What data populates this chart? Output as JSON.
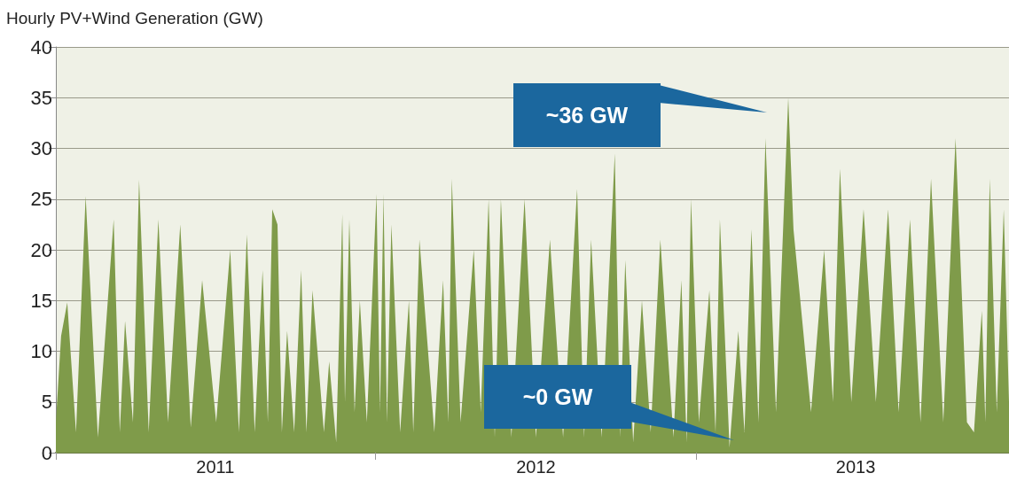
{
  "chart_data": {
    "type": "area",
    "ylabel": "Hourly PV+Wind Generation (GW)",
    "x": [
      "2011-01-01",
      "2011-01-07",
      "2011-01-14",
      "2011-01-24",
      "2011-02-04",
      "2011-02-18",
      "2011-03-08",
      "2011-03-15",
      "2011-03-21",
      "2011-03-30",
      "2011-04-06",
      "2011-04-17",
      "2011-04-28",
      "2011-05-09",
      "2011-05-23",
      "2011-06-04",
      "2011-06-17",
      "2011-07-03",
      "2011-07-19",
      "2011-07-29",
      "2011-08-07",
      "2011-08-16",
      "2011-08-25",
      "2011-08-31",
      "2011-09-05",
      "2011-09-11",
      "2011-09-16",
      "2011-09-22",
      "2011-09-30",
      "2011-10-08",
      "2011-10-14",
      "2011-10-21",
      "2011-11-03",
      "2011-11-09",
      "2011-11-17",
      "2011-11-24",
      "2011-11-27",
      "2011-12-02",
      "2011-12-08",
      "2011-12-14",
      "2011-12-22",
      "2012-01-02",
      "2012-01-06",
      "2012-01-10",
      "2012-01-14",
      "2012-01-19",
      "2012-01-29",
      "2012-02-08",
      "2012-02-13",
      "2012-02-20",
      "2012-03-08",
      "2012-03-18",
      "2012-03-24",
      "2012-03-28",
      "2012-04-07",
      "2012-04-22",
      "2012-04-30",
      "2012-05-09",
      "2012-05-16",
      "2012-05-23",
      "2012-06-04",
      "2012-06-19",
      "2012-07-02",
      "2012-07-18",
      "2012-08-02",
      "2012-08-18",
      "2012-08-26",
      "2012-09-03",
      "2012-09-15",
      "2012-09-30",
      "2012-10-06",
      "2012-10-12",
      "2012-10-21",
      "2012-10-31",
      "2012-11-10",
      "2012-11-21",
      "2012-12-06",
      "2012-12-15",
      "2012-12-21",
      "2012-12-26",
      "2013-01-04",
      "2013-01-16",
      "2013-01-23",
      "2013-01-28",
      "2013-02-08",
      "2013-02-18",
      "2013-02-25",
      "2013-03-05",
      "2013-03-13",
      "2013-03-21",
      "2013-04-02",
      "2013-04-16",
      "2013-04-22",
      "2013-05-12",
      "2013-05-27",
      "2013-06-06",
      "2013-06-14",
      "2013-06-27",
      "2013-07-11",
      "2013-07-25",
      "2013-08-08",
      "2013-08-20",
      "2013-09-02",
      "2013-09-14",
      "2013-09-26",
      "2013-10-10",
      "2013-10-24",
      "2013-11-06",
      "2013-11-14",
      "2013-11-23",
      "2013-11-27",
      "2013-12-02",
      "2013-12-10",
      "2013-12-18",
      "2013-12-24"
    ],
    "series": [
      {
        "color": "#7f9b4a",
        "values": [
          3,
          11.5,
          14.8,
          2,
          25.3,
          1.5,
          23,
          2,
          13,
          3,
          26.9,
          2,
          23,
          3,
          22.5,
          2.5,
          17,
          3,
          20,
          2,
          21.5,
          2,
          18,
          3,
          24,
          22.5,
          2,
          12,
          2,
          18,
          2,
          16,
          2,
          9,
          1,
          23.5,
          5,
          23,
          4,
          15,
          3,
          25.5,
          4,
          25.5,
          3,
          22.5,
          2,
          15,
          2,
          21,
          2,
          17,
          3,
          27,
          3,
          20,
          4,
          25,
          1.5,
          25,
          1.5,
          25,
          1.5,
          21,
          1.5,
          26,
          1.5,
          21,
          1.5,
          29.5,
          1.5,
          19,
          1,
          15,
          2,
          21,
          1.5,
          17,
          1,
          25,
          3,
          16,
          2,
          23,
          0.5,
          12,
          2,
          22,
          3,
          31,
          4,
          35,
          22,
          4,
          20,
          5,
          28,
          5,
          24,
          5,
          24,
          4,
          23,
          3,
          27,
          3,
          31,
          3,
          2,
          14,
          3,
          27,
          4,
          24,
          5
        ]
      }
    ],
    "xlim": [
      "2011-01-01",
      "2013-12-24"
    ],
    "xticks": [
      {
        "value": "2011-01-01",
        "label": null
      },
      {
        "value": "2011-07-02",
        "label": "2011"
      },
      {
        "value": "2012-01-01",
        "label": null
      },
      {
        "value": "2012-07-02",
        "label": "2012"
      },
      {
        "value": "2013-01-01",
        "label": null
      },
      {
        "value": "2013-07-02",
        "label": "2013"
      }
    ],
    "ylim": [
      0,
      40
    ],
    "yticks": [
      0,
      5,
      10,
      15,
      20,
      25,
      30,
      35,
      40
    ],
    "grid": "y",
    "annotations": [
      "~36 GW",
      "~0 GW"
    ]
  }
}
